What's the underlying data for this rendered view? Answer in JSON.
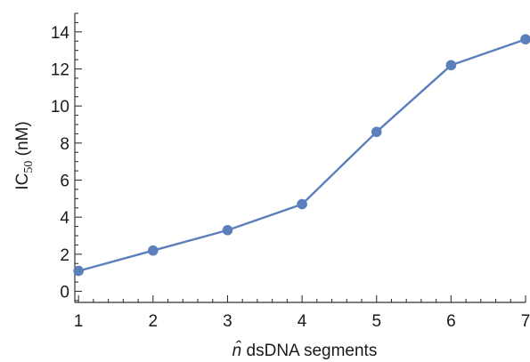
{
  "chart_data": {
    "type": "line",
    "x": [
      1,
      2,
      3,
      4,
      5,
      6,
      7
    ],
    "series": [
      {
        "values": [
          1.1,
          2.2,
          3.3,
          4.7,
          8.6,
          12.2,
          13.6
        ],
        "color": "#5b7fba"
      }
    ],
    "xlabel": {
      "prefix": "n̂",
      "rest": " dsDNA segments"
    },
    "ylabel": {
      "base": "IC",
      "sub": "50",
      "rest": " (nM)"
    },
    "xlim": [
      0.95,
      7.0
    ],
    "ylim": [
      -0.6,
      15.0
    ],
    "xticks_major": [
      1,
      2,
      3,
      4,
      5,
      6,
      7
    ],
    "yticks_major": [
      0,
      2,
      4,
      6,
      8,
      10,
      12,
      14
    ],
    "grid": false,
    "legend": "none"
  }
}
